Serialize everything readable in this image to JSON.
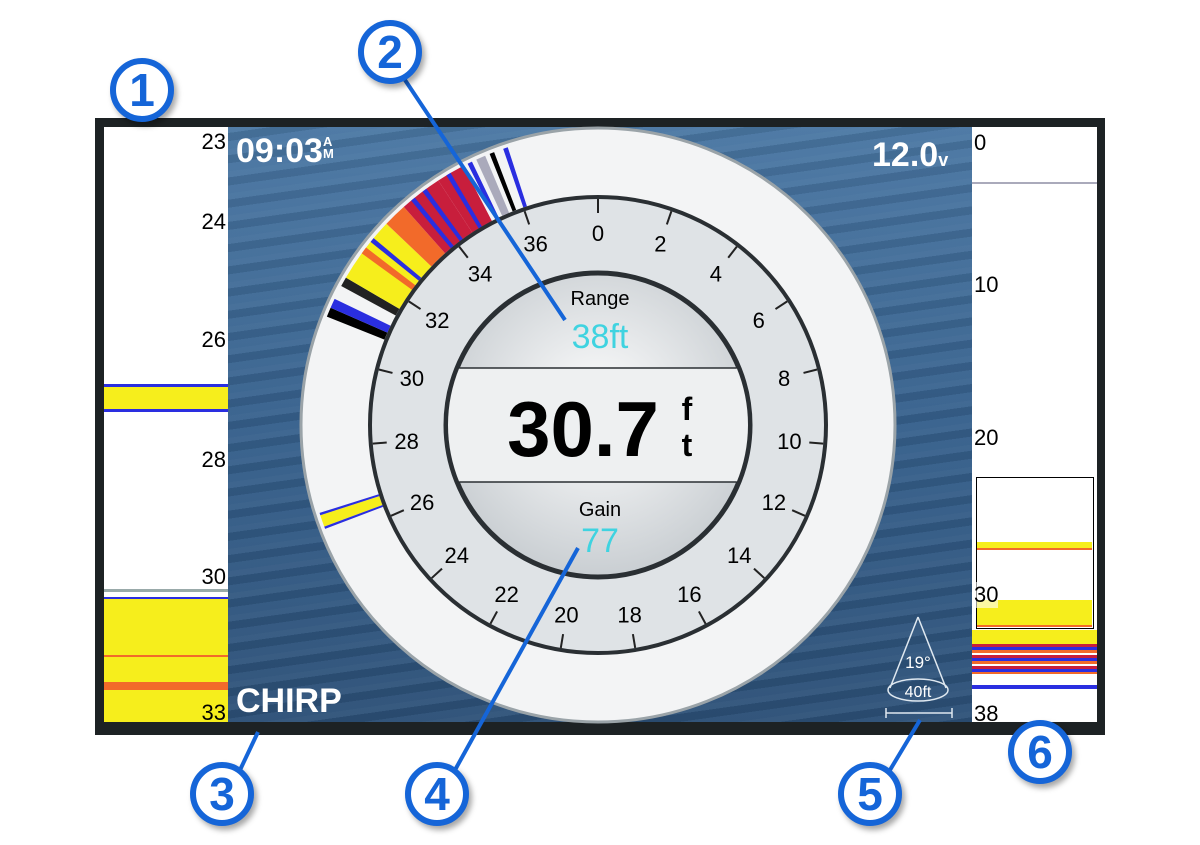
{
  "status": {
    "time": "09:03",
    "am_pm_top": "A",
    "am_pm_bottom": "M",
    "voltage": "12.0",
    "voltage_unit": "v",
    "mode": "CHIRP"
  },
  "dial": {
    "range_label": "Range",
    "range_value": "38ft",
    "depth_value": "30.7",
    "depth_unit_top": "f",
    "depth_unit_bottom": "t",
    "gain_label": "Gain",
    "gain_value": "77",
    "scale": [
      "0",
      "2",
      "4",
      "6",
      "8",
      "10",
      "12",
      "14",
      "16",
      "18",
      "20",
      "22",
      "24",
      "26",
      "28",
      "30",
      "32",
      "34",
      "36"
    ]
  },
  "left_strip": {
    "ticks": [
      "23",
      "24",
      "26",
      "28",
      "30",
      "33"
    ]
  },
  "right_strip": {
    "ticks": [
      "0",
      "10",
      "20",
      "30",
      "38"
    ]
  },
  "transducer": {
    "beam_angle": "19°",
    "beam_depth": "40ft"
  },
  "callouts": [
    "1",
    "2",
    "3",
    "4",
    "5",
    "6"
  ],
  "colors": {
    "range": "#3fd3e0",
    "callout": "#1565d8",
    "strong": "#f6ee1c",
    "medium": "#f26a2a",
    "weak": "#2a2ee0",
    "red": "#c81e3c"
  }
}
